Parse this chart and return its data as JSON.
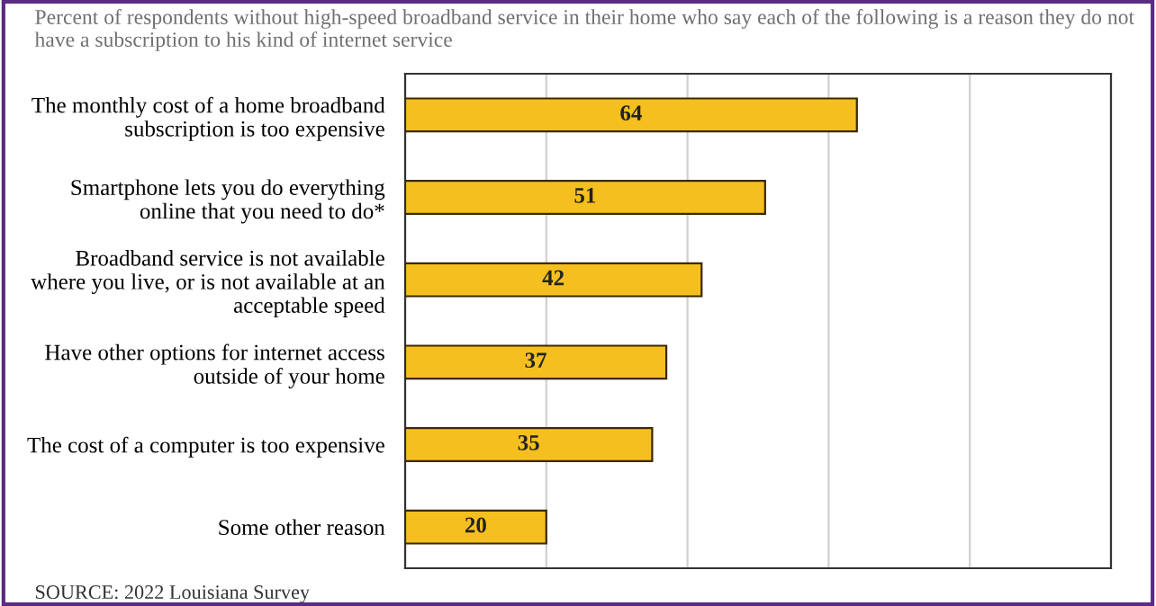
{
  "chart_data": {
    "type": "bar",
    "orientation": "horizontal",
    "title": "Percent of respondents without high-speed broadband service in their home who say each of the following is a reason they do not have a subscription to his kind of internet service",
    "categories": [
      "The monthly cost of a home broadband\nsubscription is too expensive",
      "Smartphone lets you do everything\nonline that you need to do*",
      "Broadband service is not available\nwhere you live, or is not available at an\nacceptable speed",
      "Have other options for internet access\noutside of your home",
      "The cost of a computer is too expensive",
      "Some other reason"
    ],
    "values": [
      64,
      51,
      42,
      37,
      35,
      20
    ],
    "color": "#f5c01f",
    "data_labels": true,
    "xlim": [
      0,
      100
    ],
    "xticks": [
      {
        "value": 0,
        "label": null
      },
      {
        "value": 20,
        "label": null
      },
      {
        "value": 40,
        "label": null
      },
      {
        "value": 60,
        "label": null
      },
      {
        "value": 80,
        "label": null
      },
      {
        "value": 100,
        "label": null
      }
    ],
    "grid": "x",
    "annotations": [
      "SOURCE: 2022 Louisiana Survey"
    ]
  }
}
